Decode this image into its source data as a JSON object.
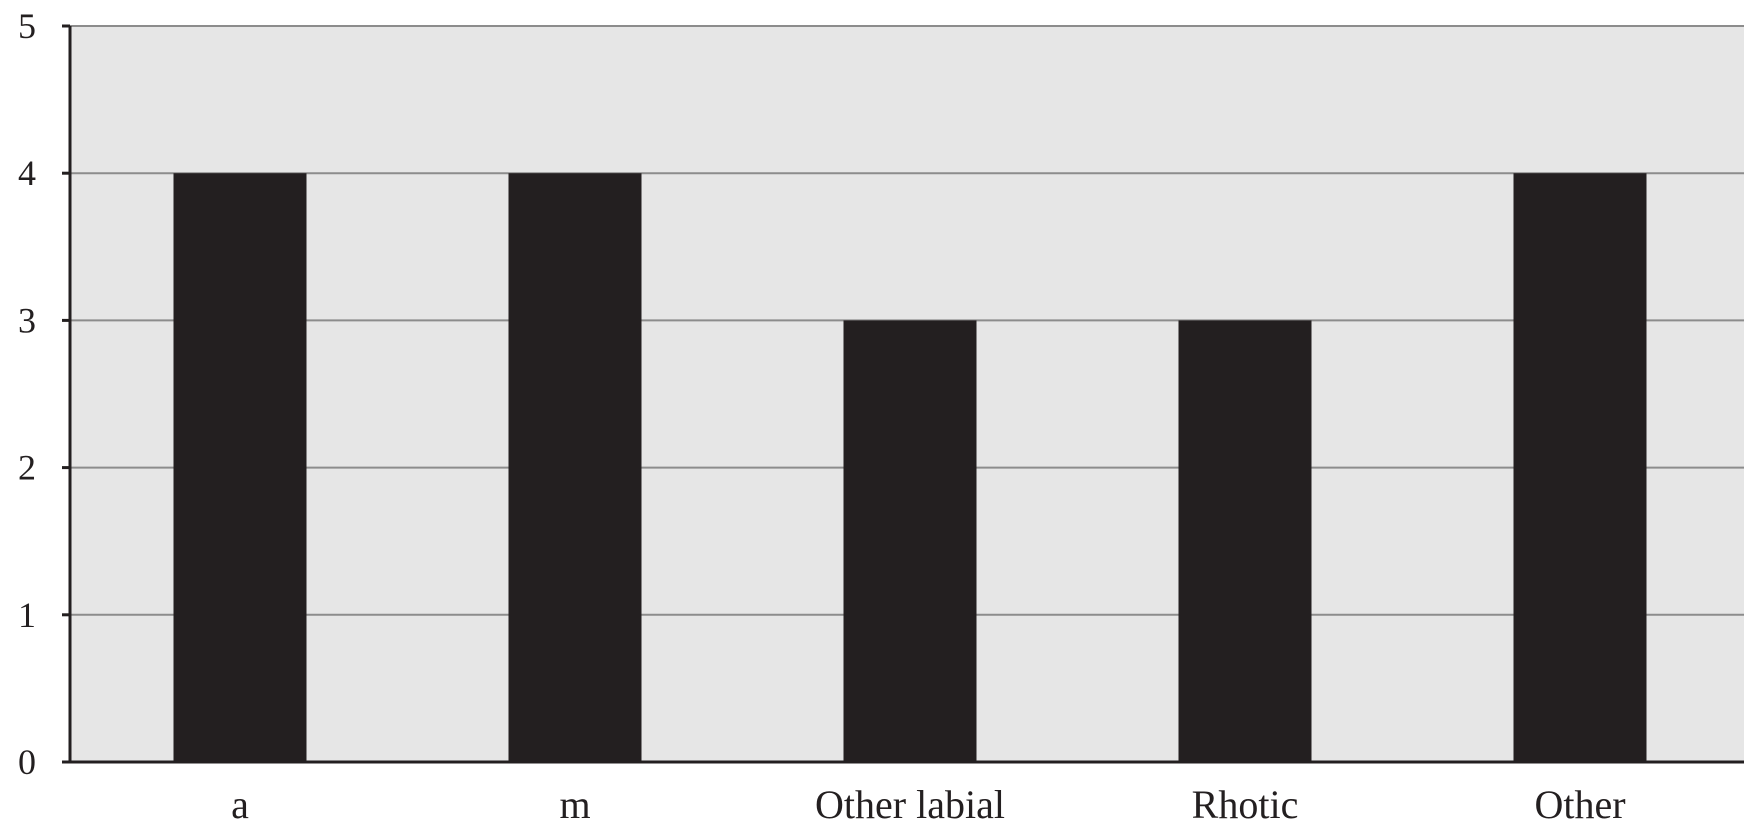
{
  "chart_data": {
    "type": "bar",
    "categories": [
      "a",
      "m",
      "Other labial",
      "Rhotic",
      "Other"
    ],
    "values": [
      4,
      4,
      3,
      3,
      4
    ],
    "ylim": [
      0,
      5
    ],
    "yticks": [
      0,
      1,
      2,
      3,
      4,
      5
    ],
    "grid": true,
    "legend": "none",
    "colors": {
      "bar": "#231f20",
      "plot_background": "#e6e6e6",
      "gridline": "#8c8c8c",
      "axis": "#231f20"
    }
  }
}
